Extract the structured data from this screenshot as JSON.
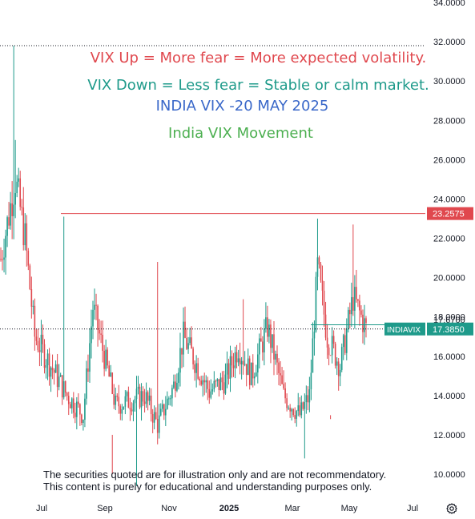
{
  "chart_data": {
    "type": "candlestick",
    "symbol": "INDIAVIX",
    "title": "India VIX Movement",
    "annotations": [
      {
        "text": "VIX Up = More fear = More expected volatility.",
        "color": "#e0484e"
      },
      {
        "text": "VIX Down = Less fear = Stable or calm market.",
        "color": "#1e9a8a"
      },
      {
        "text": "INDIA VIX -20 MAY 2025",
        "color": "#3a68c9"
      },
      {
        "text": "India VIX Movement",
        "color": "#4caf50"
      }
    ],
    "y_ticks": [
      "34.0000",
      "32.0000",
      "30.0000",
      "28.0000",
      "26.0000",
      "24.0000",
      "22.0000",
      "20.0000",
      "18.0000",
      "16.0000",
      "14.0000",
      "12.0000",
      "10.0000"
    ],
    "y_tick_values": [
      34,
      32,
      30,
      28,
      26,
      24,
      22,
      20,
      18,
      16,
      14,
      12,
      10
    ],
    "ylim": [
      9.4,
      34.2
    ],
    "x_ticks": [
      {
        "label": "Jul",
        "bold": false
      },
      {
        "label": "Sep",
        "bold": false
      },
      {
        "label": "Nov",
        "bold": false
      },
      {
        "label": "2025",
        "bold": true
      },
      {
        "label": "Mar",
        "bold": false
      },
      {
        "label": "May",
        "bold": false
      },
      {
        "label": "Jul",
        "bold": false
      }
    ],
    "resistance_level": {
      "value": 23.2575,
      "label": "23.2575",
      "color": "#e0484e"
    },
    "last_price": {
      "value": 17.385,
      "label": "17.3850",
      "name": "INDIAVIX",
      "color": "#1e9a8a"
    },
    "hidden_price_label": "17.6700",
    "peak_level": 31.8,
    "colors": {
      "up": "#1e9a8a",
      "down": "#e0484e"
    },
    "ohlc_segments": [
      {
        "count": 10,
        "from": 20.5,
        "to": 25.0
      },
      {
        "count": 6,
        "from": 25.0,
        "to": 22.0
      },
      {
        "count": 6,
        "from": 22.0,
        "to": 17.0
      },
      {
        "count": 20,
        "from": 17.0,
        "to": 14.0
      },
      {
        "count": 10,
        "from": 14.0,
        "to": 13.0
      },
      {
        "count": 6,
        "from": 13.0,
        "to": 18.5
      },
      {
        "count": 14,
        "from": 18.5,
        "to": 13.5
      },
      {
        "count": 18,
        "from": 13.5,
        "to": 14.0
      },
      {
        "count": 8,
        "from": 14.0,
        "to": 12.5
      },
      {
        "count": 10,
        "from": 12.5,
        "to": 14.5
      },
      {
        "count": 6,
        "from": 14.5,
        "to": 17.0
      },
      {
        "count": 16,
        "from": 17.0,
        "to": 14.2
      },
      {
        "count": 10,
        "from": 14.2,
        "to": 14.8
      },
      {
        "count": 8,
        "from": 14.8,
        "to": 16.5
      },
      {
        "count": 8,
        "from": 16.5,
        "to": 15.0
      },
      {
        "count": 10,
        "from": 15.0,
        "to": 17.5
      },
      {
        "count": 10,
        "from": 17.5,
        "to": 14.0
      },
      {
        "count": 10,
        "from": 14.0,
        "to": 13.0
      },
      {
        "count": 6,
        "from": 13.0,
        "to": 14.0
      },
      {
        "count": 5,
        "from": 14.0,
        "to": 20.5
      },
      {
        "count": 6,
        "from": 20.5,
        "to": 17.0
      },
      {
        "count": 8,
        "from": 17.0,
        "to": 15.5
      },
      {
        "count": 8,
        "from": 15.5,
        "to": 19.0
      },
      {
        "count": 8,
        "from": 19.0,
        "to": 17.4
      }
    ],
    "spikes": [
      {
        "index": 8,
        "high": 31.8
      },
      {
        "index": 9,
        "high": 27.0
      },
      {
        "index": 39,
        "high": 23.1
      },
      {
        "index": 69,
        "high": 12.0
      },
      {
        "index": 97,
        "high": 20.8
      },
      {
        "index": 150,
        "high": 18.9
      },
      {
        "index": 196,
        "high": 23.0
      },
      {
        "index": 204,
        "high": 12.8
      },
      {
        "index": 218,
        "high": 22.7
      }
    ],
    "lows": [
      {
        "index": 69,
        "low": 10.0
      },
      {
        "index": 84,
        "low": 9.4
      },
      {
        "index": 188,
        "low": 10.8
      },
      {
        "index": 204,
        "low": 13.0
      }
    ]
  },
  "disclaimer": {
    "line1": "The securities quoted are for illustration only and are not recommendatory.",
    "line2": "This content is purely for educational and understanding purposes only."
  },
  "settings_icon": "gear-icon"
}
